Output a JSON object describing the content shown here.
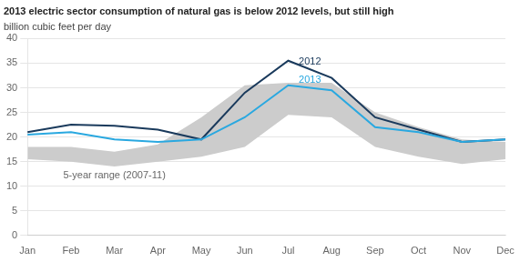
{
  "chart_data": {
    "type": "line",
    "title": "2013 electric sector consumption of natural gas is below 2012 levels, but still high",
    "ylabel": "billion cubic feet per day",
    "categories": [
      "Jan",
      "Feb",
      "Mar",
      "Apr",
      "May",
      "Jun",
      "Jul",
      "Aug",
      "Sep",
      "Oct",
      "Nov",
      "Dec"
    ],
    "series": [
      {
        "name": "5-year range (2007-11)",
        "type": "range",
        "color": "#cccccc",
        "low": [
          15.5,
          15.0,
          14.0,
          15.0,
          16.0,
          18.0,
          24.5,
          24.0,
          18.0,
          16.0,
          14.5,
          15.5
        ],
        "high": [
          18.0,
          18.0,
          17.0,
          18.5,
          24.0,
          30.5,
          31.0,
          31.0,
          25.0,
          22.0,
          19.5,
          19.0
        ]
      },
      {
        "name": "2012",
        "type": "line",
        "color": "#1a3a5c",
        "values": [
          21.0,
          22.5,
          22.3,
          21.5,
          19.5,
          29.0,
          35.5,
          32.0,
          24.0,
          21.5,
          19.0,
          19.5
        ]
      },
      {
        "name": "2013",
        "type": "line",
        "color": "#29a8e0",
        "values": [
          20.5,
          21.0,
          19.5,
          19.0,
          19.5,
          24.0,
          30.5,
          29.5,
          22.0,
          21.0,
          19.0,
          19.5
        ]
      }
    ],
    "ylim": [
      0,
      40
    ],
    "yticks": [
      0,
      5,
      10,
      15,
      20,
      25,
      30,
      35,
      40
    ],
    "grid": "y"
  }
}
